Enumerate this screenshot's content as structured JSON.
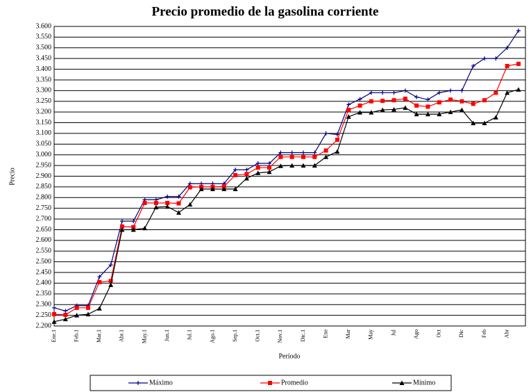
{
  "chart_data": {
    "type": "line",
    "title": "Precio promedio de la gasolina corriente",
    "y_label": "Precio",
    "x_label": "Período",
    "categories": [
      "Ene.1",
      null,
      "Feb.1",
      null,
      "Mar.1",
      null,
      "Abr.1",
      null,
      "May.1",
      null,
      "Jun.1",
      null,
      "Jul.1",
      null,
      "Ago.1",
      null,
      "Sep.1",
      null,
      "Oct.1",
      null,
      "Nov.1",
      null,
      "Dic.1",
      null,
      "Ene",
      null,
      "Mar",
      null,
      "May",
      null,
      "Jul",
      null,
      "Ago",
      null,
      "Oct",
      null,
      "Dic",
      null,
      "Feb",
      null,
      "Abr",
      null
    ],
    "series": [
      {
        "name": "Máximo",
        "color": "#000080",
        "marker": "plus",
        "values": [
          2285,
          2270,
          2295,
          2295,
          2430,
          2485,
          2690,
          2690,
          2790,
          2790,
          2805,
          2805,
          2865,
          2865,
          2865,
          2865,
          2930,
          2930,
          2960,
          2960,
          3010,
          3010,
          3010,
          3010,
          3100,
          3095,
          3235,
          3260,
          3290,
          3290,
          3290,
          3300,
          3270,
          3258,
          3290,
          3300,
          3300,
          3415,
          3450,
          3450,
          3500,
          3580
        ]
      },
      {
        "name": "Promedio",
        "color": "#ff0000",
        "marker": "square",
        "values": [
          2255,
          2252,
          2285,
          2285,
          2405,
          2410,
          2665,
          2662,
          2775,
          2775,
          2775,
          2773,
          2848,
          2850,
          2850,
          2852,
          2905,
          2910,
          2940,
          2940,
          2990,
          2990,
          2990,
          2990,
          3020,
          3070,
          3210,
          3230,
          3250,
          3252,
          3255,
          3262,
          3230,
          3225,
          3245,
          3258,
          3250,
          3238,
          3255,
          3290,
          3415,
          3425
        ]
      },
      {
        "name": "Mínimo",
        "color": "#000000",
        "marker": "triangle",
        "values": [
          2220,
          2232,
          2250,
          2255,
          2282,
          2392,
          2650,
          2650,
          2657,
          2755,
          2758,
          2730,
          2768,
          2840,
          2840,
          2840,
          2840,
          2890,
          2915,
          2920,
          2948,
          2950,
          2950,
          2950,
          2990,
          3015,
          3178,
          3198,
          3198,
          3210,
          3212,
          3220,
          3190,
          3190,
          3190,
          3200,
          3210,
          3148,
          3148,
          3175,
          3290,
          3305
        ]
      }
    ],
    "ylim": [
      2200,
      3600
    ],
    "yticks": [
      {
        "value": 2200,
        "label": "2.200"
      },
      {
        "value": 2250,
        "label": "2.250"
      },
      {
        "value": 2300,
        "label": "2.300"
      },
      {
        "value": 2350,
        "label": "2.350"
      },
      {
        "value": 2400,
        "label": "2.400"
      },
      {
        "value": 2450,
        "label": "2.450"
      },
      {
        "value": 2500,
        "label": "2.500"
      },
      {
        "value": 2550,
        "label": "2.550"
      },
      {
        "value": 2600,
        "label": "2.600"
      },
      {
        "value": 2650,
        "label": "2.650"
      },
      {
        "value": 2700,
        "label": "2.700"
      },
      {
        "value": 2750,
        "label": "2.750"
      },
      {
        "value": 2800,
        "label": "2.800"
      },
      {
        "value": 2850,
        "label": "2.850"
      },
      {
        "value": 2900,
        "label": "2.900"
      },
      {
        "value": 2950,
        "label": "2.950"
      },
      {
        "value": 3000,
        "label": "3.000"
      },
      {
        "value": 3050,
        "label": "3.050"
      },
      {
        "value": 3100,
        "label": "3.100"
      },
      {
        "value": 3150,
        "label": "3.150"
      },
      {
        "value": 3200,
        "label": "3.200"
      },
      {
        "value": 3250,
        "label": "3.250"
      },
      {
        "value": 3300,
        "label": "3.300"
      },
      {
        "value": 3350,
        "label": "3.350"
      },
      {
        "value": 3400,
        "label": "3.400"
      },
      {
        "value": 3450,
        "label": "3.450"
      },
      {
        "value": 3500,
        "label": "3.500"
      },
      {
        "value": 3550,
        "label": "3.550"
      },
      {
        "value": 3600,
        "label": "3.600"
      }
    ],
    "grid": true,
    "legend": "bottom"
  }
}
